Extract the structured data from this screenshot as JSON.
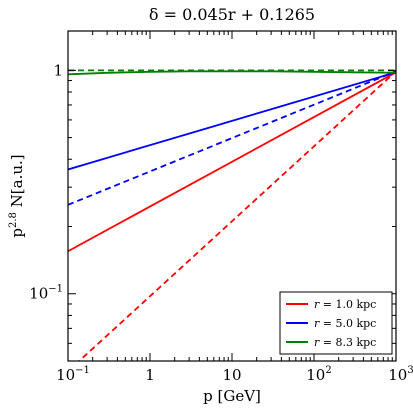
{
  "chart_data": {
    "type": "line",
    "title": "δ = 0.045r + 0.1265",
    "xlabel": "p [GeV]",
    "ylabel_main": "p",
    "ylabel_sup": "2.8",
    "ylabel_tail": " N[a.u.]",
    "x_scale": "log",
    "y_scale": "log",
    "xlim": [
      0.1,
      1000
    ],
    "ylim": [
      0.05,
      1.5
    ],
    "grid": false,
    "legend_position": "lower-right",
    "x_ticks": [
      {
        "value": 0.1,
        "base": "10",
        "exp": "−1"
      },
      {
        "value": 1,
        "base": "1",
        "exp": ""
      },
      {
        "value": 10,
        "base": "10",
        "exp": ""
      },
      {
        "value": 100,
        "base": "10",
        "exp": "2"
      },
      {
        "value": 1000,
        "base": "10",
        "exp": "3"
      }
    ],
    "y_ticks": [
      {
        "value": 0.1,
        "base": "10",
        "exp": "−1"
      },
      {
        "value": 1,
        "base": "1",
        "exp": ""
      }
    ],
    "series": [
      {
        "name": "r = 1.0 kpc",
        "color": "#ff0000",
        "style": "solid",
        "x": [
          0.1,
          1000
        ],
        "y": [
          0.155,
          0.98
        ]
      },
      {
        "name": "",
        "color": "#ff0000",
        "style": "dashed",
        "x": [
          0.1,
          1000
        ],
        "y": [
          0.045,
          0.99
        ]
      },
      {
        "name": "r = 5.0 kpc",
        "color": "#0000ff",
        "style": "solid",
        "x": [
          0.1,
          1000
        ],
        "y": [
          0.36,
          0.98
        ]
      },
      {
        "name": "",
        "color": "#0000ff",
        "style": "dashed",
        "x": [
          0.1,
          1000
        ],
        "y": [
          0.25,
          0.99
        ]
      },
      {
        "name": "r = 8.3 kpc",
        "color": "#007f00",
        "style": "solid",
        "x": [
          0.1,
          0.3,
          1,
          3,
          10,
          30,
          100,
          300,
          1000
        ],
        "y": [
          0.96,
          0.975,
          0.985,
          0.99,
          0.99,
          0.99,
          0.985,
          0.98,
          0.975
        ]
      },
      {
        "name": "",
        "color": "#007f00",
        "style": "dashed",
        "x": [
          0.1,
          1000
        ],
        "y": [
          1.0,
          1.0
        ]
      }
    ],
    "legend": [
      {
        "label_var": "r",
        "label_rest": " = 1.0 kpc",
        "color": "#ff0000"
      },
      {
        "label_var": "r",
        "label_rest": " = 5.0 kpc",
        "color": "#0000ff"
      },
      {
        "label_var": "r",
        "label_rest": " = 8.3 kpc",
        "color": "#007f00"
      }
    ]
  }
}
